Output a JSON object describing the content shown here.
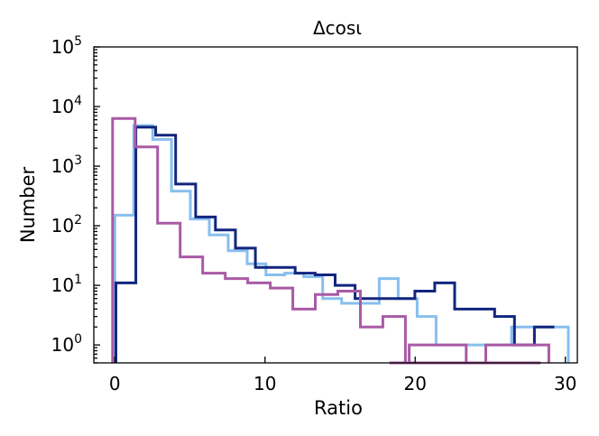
{
  "chart_data": {
    "type": "histogram",
    "title": "Δcosι",
    "xlabel": "Ratio",
    "ylabel": "Number",
    "xlim": [
      -1.4,
      30.8
    ],
    "ylim": [
      0.5,
      100000
    ],
    "y_scale": "log",
    "x_ticks": [
      0,
      10,
      20,
      30
    ],
    "x_tick_labels": [
      "0",
      "10",
      "20",
      "30"
    ],
    "y_ticks": [
      1,
      10,
      100,
      1000,
      10000,
      100000
    ],
    "y_tick_labels": [
      {
        "base": "10",
        "exp": "0"
      },
      {
        "base": "10",
        "exp": "1"
      },
      {
        "base": "10",
        "exp": "2"
      },
      {
        "base": "10",
        "exp": "3"
      },
      {
        "base": "10",
        "exp": "4"
      },
      {
        "base": "10",
        "exp": "5"
      }
    ],
    "grid": false,
    "legend": "none",
    "series": [
      {
        "color": "#88bfee",
        "edges": [
          0,
          1.26,
          2.52,
          3.77,
          5.03,
          6.29,
          7.55,
          8.81,
          10.06,
          11.32,
          12.58,
          13.84,
          15.1,
          16.35,
          17.61,
          18.87,
          20.13,
          21.39,
          22.65,
          23.9,
          25.16,
          26.42,
          27.68,
          28.94,
          30.2
        ],
        "counts": [
          150,
          4800,
          2800,
          380,
          130,
          70,
          38,
          23,
          15,
          16,
          14,
          6,
          5,
          5,
          13,
          6,
          3,
          1,
          1,
          1,
          1,
          2,
          2,
          2
        ]
      },
      {
        "color": "#12267e",
        "edges": [
          0.07,
          1.4,
          2.72,
          4.05,
          5.38,
          6.7,
          8.03,
          9.36,
          10.69,
          12.01,
          13.34,
          14.67,
          16.0,
          17.32,
          18.65,
          19.98,
          21.3,
          22.63,
          23.96,
          25.29,
          26.61,
          27.94,
          29.27
        ],
        "counts": [
          11,
          4500,
          3300,
          500,
          140,
          85,
          42,
          20,
          20,
          16,
          15,
          10,
          6,
          6,
          6,
          8,
          11,
          4,
          4,
          3,
          1,
          2,
          2
        ]
      },
      {
        "color": "#a95aa5",
        "edges": [
          -0.15,
          1.35,
          2.85,
          4.35,
          5.85,
          7.35,
          8.85,
          10.35,
          11.85,
          13.35,
          14.85,
          16.35,
          17.85,
          19.35,
          20.85,
          22.35,
          23.85,
          25.35,
          26.85,
          28.35
        ],
        "counts": [
          6300,
          2100,
          110,
          30,
          16,
          13,
          11,
          9,
          4,
          7,
          8,
          2,
          3,
          0,
          0,
          0,
          0,
          0,
          0
        ]
      },
      {
        "color": "#a95aa5",
        "edges": [
          18.3,
          19.6,
          21.0,
          22.2,
          23.4,
          24.7,
          26.0,
          27.4,
          28.9
        ],
        "counts": [
          0,
          1,
          1,
          1,
          0,
          1,
          1,
          1
        ]
      }
    ]
  }
}
